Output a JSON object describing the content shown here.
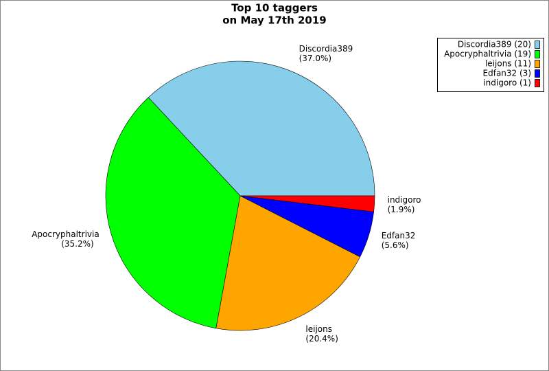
{
  "chart_data": {
    "type": "pie",
    "title": "Top 10 taggers",
    "subtitle": "on May 17th 2019",
    "categories": [
      "Discordia389",
      "Apocryphaltrivia",
      "leijons",
      "Edfan32",
      "indigoro"
    ],
    "values": [
      37.0,
      35.2,
      20.4,
      5.6,
      1.9
    ],
    "value_labels": [
      "(37.0%)",
      "(35.2%)",
      "(20.4%)",
      "(5.6%)",
      "(1.9%)"
    ],
    "legend_labels": [
      "Discordia389 (20)",
      "Apocryphaltrivia (19)",
      "leijons (11)",
      "Edfan32 (3)",
      "indigoro (1)"
    ],
    "colors": [
      "#87ceeb",
      "#00ff00",
      "#ffa500",
      "#0000ff",
      "#ff0000"
    ],
    "legend": "upper right"
  }
}
